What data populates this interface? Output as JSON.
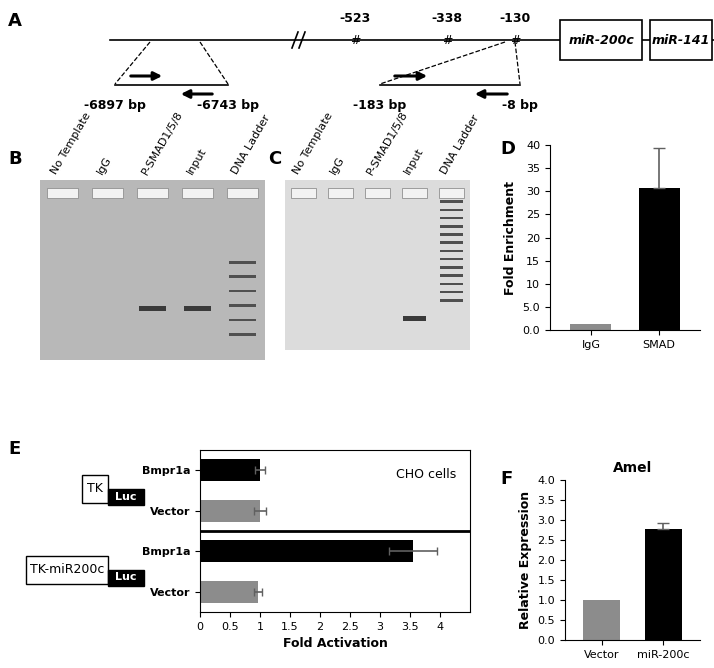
{
  "panel_labels": [
    "A",
    "B",
    "C",
    "D",
    "E",
    "F"
  ],
  "diagram": {
    "positions": [
      "-523",
      "-338",
      "-130"
    ],
    "site_mark": "#",
    "genes": [
      "miR-200c",
      "miR-141"
    ],
    "amplicons": [
      {
        "start": "-6897 bp",
        "end": "-6743 bp"
      },
      {
        "start": "-183 bp",
        "end": "-8 bp"
      }
    ]
  },
  "gels": [
    {
      "lanes": [
        "No Template",
        "IgG",
        "P-SMAD1/5/8",
        "Input",
        "DNA Ladder"
      ],
      "lanes_with_band": [
        "P-SMAD1/5/8",
        "Input"
      ],
      "ladder": "DNA Ladder"
    },
    {
      "lanes": [
        "No Template",
        "IgG",
        "P-SMAD1/5/8",
        "Input",
        "DNA Ladder"
      ],
      "lanes_with_band": [
        "Input"
      ],
      "ladder": "DNA Ladder"
    }
  ],
  "chart_data": [
    {
      "type": "bar",
      "ylabel": "Fold Enrichment",
      "categories": [
        "IgG",
        "SMAD"
      ],
      "values": [
        1.2,
        30.7
      ],
      "errors": [
        null,
        8.7
      ],
      "colors": [
        "#8c8c8c",
        "#000000"
      ],
      "ylim": [
        0,
        40
      ],
      "yticks": [
        {
          "value": 0,
          "label": "0.0"
        },
        {
          "value": 5,
          "label": "5.0"
        },
        10,
        15,
        20,
        25,
        30,
        35,
        40
      ]
    },
    {
      "type": "bar",
      "orientation": "horizontal",
      "annotation": "CHO cells",
      "xlabel": "Fold Activation",
      "xlim": [
        0,
        4.5
      ],
      "xticks": [
        0,
        0.5,
        1,
        1.5,
        2,
        2.5,
        3,
        3.5,
        4
      ],
      "groups": [
        {
          "construct": "TK",
          "reporter": "Luc",
          "categories": [
            "Bmpr1a",
            "Vector"
          ],
          "values": [
            1.0,
            1.0
          ],
          "errors": [
            0.08,
            0.1
          ],
          "colors": [
            "#000000",
            "#8c8c8c"
          ]
        },
        {
          "construct": "TK-miR200c",
          "reporter": "Luc",
          "categories": [
            "Bmpr1a",
            "Vector"
          ],
          "values": [
            3.55,
            0.97
          ],
          "errors": [
            0.4,
            0.07
          ],
          "colors": [
            "#000000",
            "#8c8c8c"
          ]
        }
      ]
    },
    {
      "type": "bar",
      "title": "Amel",
      "ylabel": "Relative Expression",
      "categories": [
        "Vector",
        "miR-200c"
      ],
      "values": [
        1.0,
        2.77
      ],
      "errors": [
        null,
        0.15
      ],
      "colors": [
        "#8c8c8c",
        "#000000"
      ],
      "ylim": [
        0,
        4
      ],
      "yticks": [
        {
          "value": 0,
          "label": "0.0"
        },
        {
          "value": 0.5,
          "label": "0.5"
        },
        {
          "value": 1,
          "label": "1.0"
        },
        {
          "value": 1.5,
          "label": "1.5"
        },
        {
          "value": 2,
          "label": "2.0"
        },
        {
          "value": 2.5,
          "label": "2.5"
        },
        {
          "value": 3,
          "label": "3.0"
        },
        {
          "value": 3.5,
          "label": "3.5"
        },
        {
          "value": 4,
          "label": "4.0"
        }
      ]
    }
  ]
}
